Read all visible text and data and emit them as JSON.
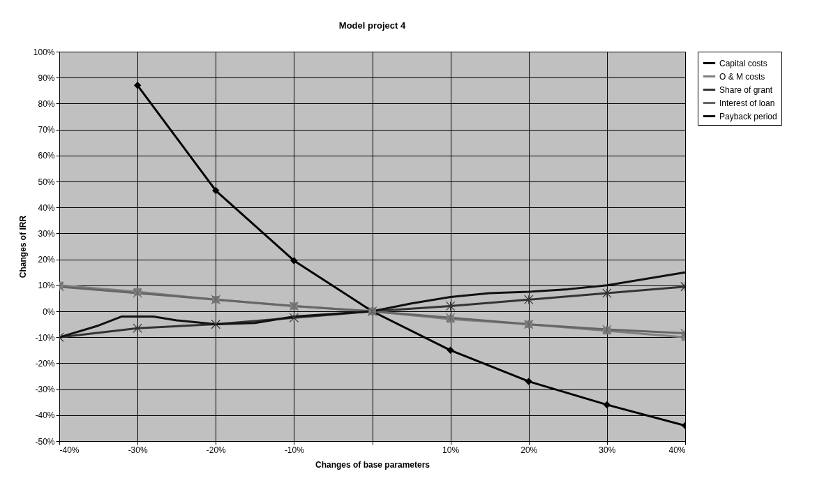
{
  "chart_data": {
    "type": "line",
    "title": "Model project 4",
    "xlabel": "Changes of base parameters",
    "ylabel": "Changes of IRR",
    "x": [
      -40,
      -30,
      -20,
      -10,
      0,
      10,
      20,
      30,
      40
    ],
    "series": [
      {
        "name": "Capital costs",
        "color": "#000000",
        "marker": "diamond",
        "values": [
          null,
          87,
          46.5,
          19.5,
          0,
          -15,
          -27,
          -36,
          -44
        ]
      },
      {
        "name": "O & M costs",
        "color": "#808080",
        "marker": "square",
        "values": [
          10,
          7.5,
          4.5,
          2,
          0,
          -3,
          -5,
          -7.5,
          -10
        ]
      },
      {
        "name": "Share of grant",
        "color": "#333333",
        "marker": "cross",
        "values": [
          -10,
          -6.5,
          -5,
          -2.5,
          0,
          2,
          4.5,
          7,
          9.5
        ]
      },
      {
        "name": "Interest of loan",
        "color": "#666666",
        "marker": "cross",
        "values": [
          9.5,
          7,
          4.5,
          2,
          0,
          -2.5,
          -5,
          -7,
          -8.5
        ]
      },
      {
        "name": "Payback period",
        "color": "#111111",
        "marker": "none",
        "x": [
          -40,
          -35,
          -32,
          -28,
          -25,
          -20,
          -15,
          -10,
          -5,
          0,
          5,
          10,
          15,
          20,
          25,
          30,
          35,
          40
        ],
        "values": [
          -10,
          -5.5,
          -2,
          -2,
          -3.5,
          -5,
          -4.5,
          -2,
          -1,
          0,
          3,
          5.5,
          7,
          7.5,
          8.5,
          10,
          12.5,
          15
        ]
      }
    ],
    "xlim": [
      -40,
      40
    ],
    "xticks": [
      {
        "value": -40,
        "label": "-40%"
      },
      {
        "value": -30,
        "label": "-30%"
      },
      {
        "value": -20,
        "label": "-20%"
      },
      {
        "value": -10,
        "label": "-10%"
      },
      {
        "value": 0,
        "label": null
      },
      {
        "value": 10,
        "label": "10%"
      },
      {
        "value": 20,
        "label": "20%"
      },
      {
        "value": 30,
        "label": "30%"
      },
      {
        "value": 40,
        "label": "40%"
      }
    ],
    "ylim": [
      -50,
      100
    ],
    "yticks": [
      {
        "value": -50,
        "label": "-50%"
      },
      {
        "value": -40,
        "label": "-40%"
      },
      {
        "value": -30,
        "label": "-30%"
      },
      {
        "value": -20,
        "label": "-20%"
      },
      {
        "value": -10,
        "label": "-10%"
      },
      {
        "value": 0,
        "label": "0%"
      },
      {
        "value": 10,
        "label": "10%"
      },
      {
        "value": 20,
        "label": "20%"
      },
      {
        "value": 30,
        "label": "30%"
      },
      {
        "value": 40,
        "label": "40%"
      },
      {
        "value": 50,
        "label": "50%"
      },
      {
        "value": 60,
        "label": "60%"
      },
      {
        "value": 70,
        "label": "70%"
      },
      {
        "value": 80,
        "label": "80%"
      },
      {
        "value": 90,
        "label": "90%"
      },
      {
        "value": 100,
        "label": "100%"
      }
    ],
    "grid": true,
    "legend": "right",
    "line_style": "solid"
  }
}
